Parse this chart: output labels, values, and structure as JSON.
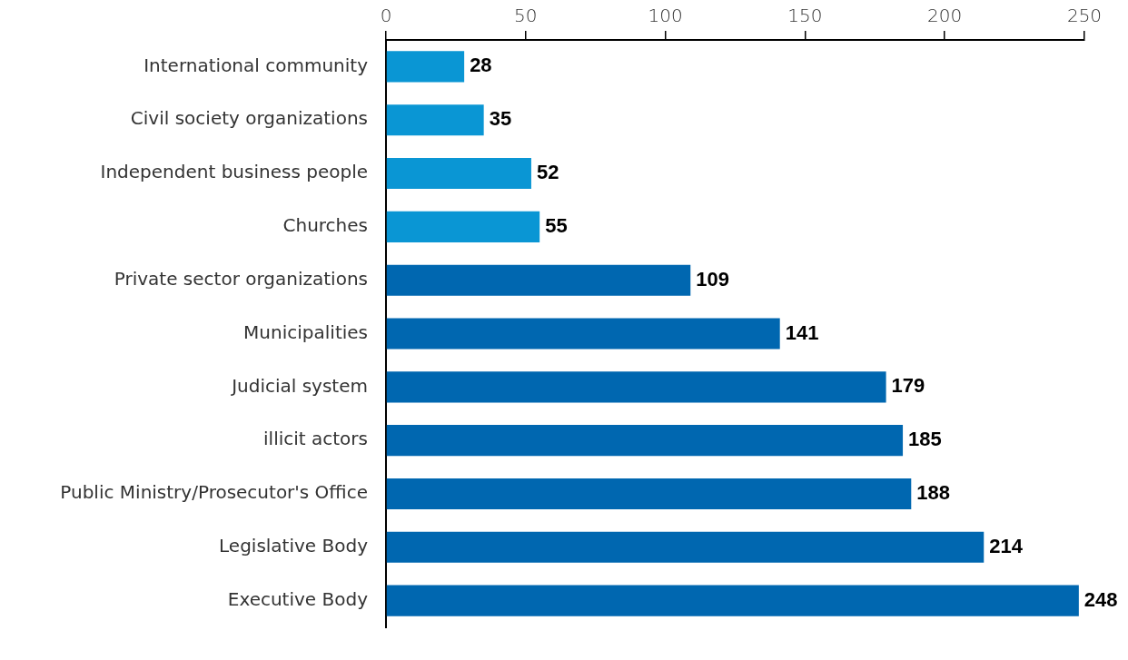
{
  "chart_data": {
    "type": "bar",
    "orientation": "horizontal",
    "categories": [
      "International community",
      "Civil society organizations",
      "Independent business people",
      "Churches",
      "Private sector organizations",
      "Municipalities",
      "Judicial system",
      "illicit actors",
      "Public Ministry/Prosecutor's Office",
      "Legislative Body",
      "Executive Body"
    ],
    "values": [
      28,
      35,
      52,
      55,
      109,
      141,
      179,
      185,
      188,
      214,
      248
    ],
    "colors": [
      "#0a96d4",
      "#0a96d4",
      "#0a96d4",
      "#0a96d4",
      "#0067b0",
      "#0067b0",
      "#0067b0",
      "#0067b0",
      "#0067b0",
      "#0067b0",
      "#0067b0"
    ],
    "xlim": [
      0,
      250
    ],
    "xticks": [
      0,
      50,
      100,
      150,
      200,
      250
    ],
    "grid": false,
    "data_labels": true
  }
}
